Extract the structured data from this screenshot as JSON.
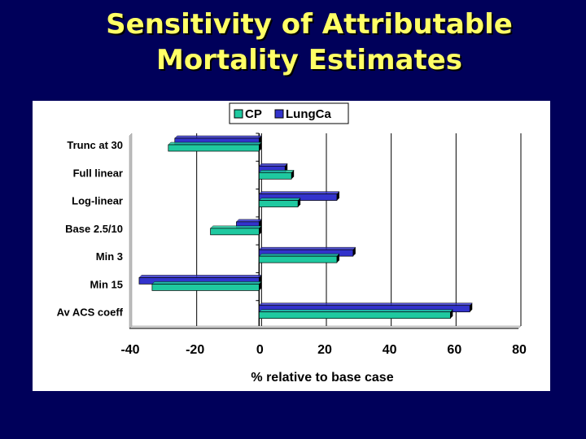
{
  "slide": {
    "title_line1": "Sensitivity of Attributable",
    "title_line2": "Mortality Estimates",
    "background_color": "#00005a",
    "title_color": "#ffff66"
  },
  "chart_data": {
    "type": "bar",
    "orientation": "horizontal",
    "style": "3d-clustered",
    "title": "",
    "xlabel": "% relative to base case",
    "ylabel": "",
    "xlim": [
      -40,
      80
    ],
    "xticks": [
      -40,
      -20,
      0,
      20,
      40,
      60,
      80
    ],
    "grid": "vertical",
    "legend_position": "top-center",
    "categories": [
      "Trunc at 30",
      "Full linear",
      "Log-linear",
      "Base 2.5/10",
      "Min 3",
      "Min 15",
      "Av ACS coeff"
    ],
    "series": [
      {
        "name": "CP",
        "color": "#1fc9a0",
        "values": [
          -28,
          10,
          12,
          -15,
          24,
          -33,
          59
        ]
      },
      {
        "name": "LungCa",
        "color": "#3333cc",
        "values": [
          -26,
          8,
          24,
          -7,
          29,
          -37,
          65
        ]
      }
    ]
  }
}
